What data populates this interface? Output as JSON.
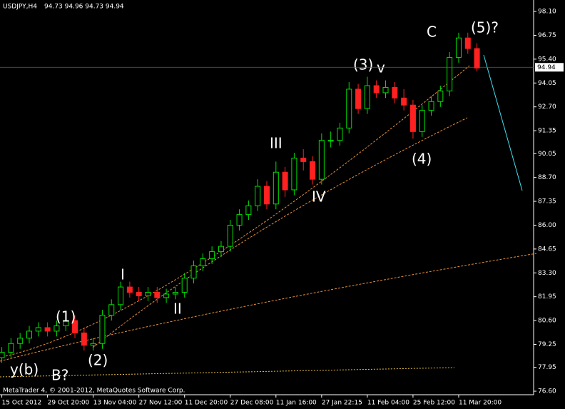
{
  "chart_data": {
    "type": "candlestick",
    "title": "USDJPY,H4",
    "subtitle": "94.73 94.96 94.73 94.94",
    "footer": "MetaTrader 4, © 2001-2012, MetaQuotes Software Corp.",
    "open": [
      78.5,
      78.8,
      79.3,
      79.6,
      80.0,
      80.2,
      80.0,
      80.3,
      80.6,
      79.9,
      79.2,
      79.3,
      80.9,
      81.5,
      82.5,
      82.2,
      82.0,
      82.2,
      81.9,
      82.1,
      82.2,
      83.0,
      83.7,
      84.1,
      84.5,
      84.8,
      86.0,
      86.6,
      87.1,
      88.2,
      87.2,
      89.0,
      88.0,
      89.8,
      89.6,
      88.6,
      90.8,
      90.8,
      91.5,
      93.7,
      92.6,
      93.9,
      93.5,
      93.8,
      93.2,
      92.8,
      91.3,
      92.5,
      93.0,
      93.6,
      95.5,
      96.6,
      96.0
    ],
    "high": [
      79.1,
      79.6,
      79.9,
      80.3,
      80.5,
      80.5,
      80.6,
      80.9,
      80.9,
      80.2,
      79.6,
      81.2,
      81.8,
      82.8,
      82.8,
      82.5,
      82.5,
      82.5,
      82.4,
      82.5,
      83.3,
      84.0,
      84.4,
      84.8,
      85.1,
      86.3,
      86.9,
      87.4,
      88.6,
      88.5,
      89.6,
      89.3,
      90.1,
      90.3,
      89.9,
      91.2,
      91.3,
      91.8,
      94.1,
      94.0,
      94.4,
      94.2,
      94.2,
      94.1,
      93.7,
      93.1,
      92.8,
      93.3,
      93.9,
      95.8,
      96.9,
      96.9,
      96.3
    ],
    "low": [
      78.2,
      78.5,
      79.0,
      79.3,
      79.7,
      79.7,
      79.7,
      80.0,
      79.6,
      78.9,
      78.9,
      79.0,
      80.6,
      81.2,
      81.9,
      81.7,
      81.7,
      81.6,
      81.6,
      81.8,
      81.9,
      82.7,
      83.4,
      83.8,
      84.2,
      84.5,
      85.7,
      86.3,
      86.8,
      86.9,
      86.9,
      87.6,
      87.7,
      89.1,
      88.3,
      88.3,
      90.4,
      90.5,
      91.2,
      92.3,
      92.3,
      93.2,
      93.2,
      92.9,
      92.5,
      90.9,
      91.0,
      92.2,
      92.7,
      93.3,
      95.2,
      95.7,
      94.7
    ],
    "close": [
      78.8,
      79.3,
      79.6,
      80.0,
      80.2,
      80.0,
      80.3,
      80.6,
      79.9,
      79.2,
      79.3,
      80.9,
      81.5,
      82.5,
      82.2,
      82.0,
      82.2,
      81.9,
      82.1,
      82.2,
      83.0,
      83.7,
      84.1,
      84.5,
      84.8,
      86.0,
      86.6,
      87.1,
      88.2,
      87.2,
      89.0,
      88.0,
      89.8,
      89.6,
      88.6,
      90.8,
      90.8,
      91.5,
      93.7,
      92.6,
      93.9,
      93.5,
      93.8,
      93.2,
      92.8,
      91.3,
      92.5,
      93.0,
      93.6,
      95.5,
      96.6,
      96.0,
      94.9
    ],
    "up_color": "#00e000",
    "down_color": "#ff2020",
    "current_price": 94.94,
    "xlim": [
      -0.2,
      58.2
    ],
    "xticks": [
      {
        "value": 0,
        "label": "15 Oct 2012"
      },
      {
        "value": 5,
        "label": "29 Oct 20:00"
      },
      {
        "value": 10,
        "label": "13 Nov 04:00"
      },
      {
        "value": 15,
        "label": "27 Nov 12:00"
      },
      {
        "value": 20,
        "label": "11 Dec 20:00"
      },
      {
        "value": 25,
        "label": "27 Dec 08:00"
      },
      {
        "value": 30,
        "label": "11 Jan 16:00"
      },
      {
        "value": 35,
        "label": "27 Jan 22:15"
      },
      {
        "value": 40,
        "label": "11 Feb 04:00"
      },
      {
        "value": 45,
        "label": "25 Feb 12:00"
      },
      {
        "value": 50,
        "label": "11 Mar 20:00"
      }
    ],
    "ylim": [
      76.4,
      98.75
    ],
    "yticks": [
      {
        "value": 98.1,
        "label": "98.10"
      },
      96.75,
      {
        "value": 95.4,
        "label": "95.40"
      },
      94.05,
      {
        "value": 92.7,
        "label": "92.70"
      },
      91.35,
      90.05,
      {
        "value": 88.7,
        "label": "88.70"
      },
      87.35,
      {
        "value": 86,
        "label": "86.00"
      },
      84.65,
      {
        "value": 83.3,
        "label": "83.30"
      },
      81.95,
      {
        "value": 80.6,
        "label": "80.60"
      },
      79.25,
      77.95,
      {
        "value": 76.6,
        "label": "76.60"
      }
    ],
    "annotations": [
      {
        "text": "(1)",
        "color": "#22dd22"
      },
      {
        "text": "(2)",
        "color": "#22dd22"
      },
      {
        "text": "(3)",
        "color": "#22dd22"
      },
      {
        "text": "v",
        "color": "#3aa8f0"
      },
      {
        "text": "(4)",
        "color": "#22dd22"
      },
      {
        "text": "(5)?",
        "color": "#22dd22"
      },
      {
        "text": "C",
        "color": "#ff4a14"
      },
      {
        "text": "I",
        "color": "#3aa8f0"
      },
      {
        "text": "II",
        "color": "#3aa8f0"
      },
      {
        "text": "III",
        "color": "#3aa8f0"
      },
      {
        "text": "IV",
        "color": "#3aa8f0"
      },
      {
        "text": "y(b)",
        "color": "#3aa8f0"
      },
      {
        "text": "B?",
        "color": "#ff4a14"
      }
    ]
  }
}
